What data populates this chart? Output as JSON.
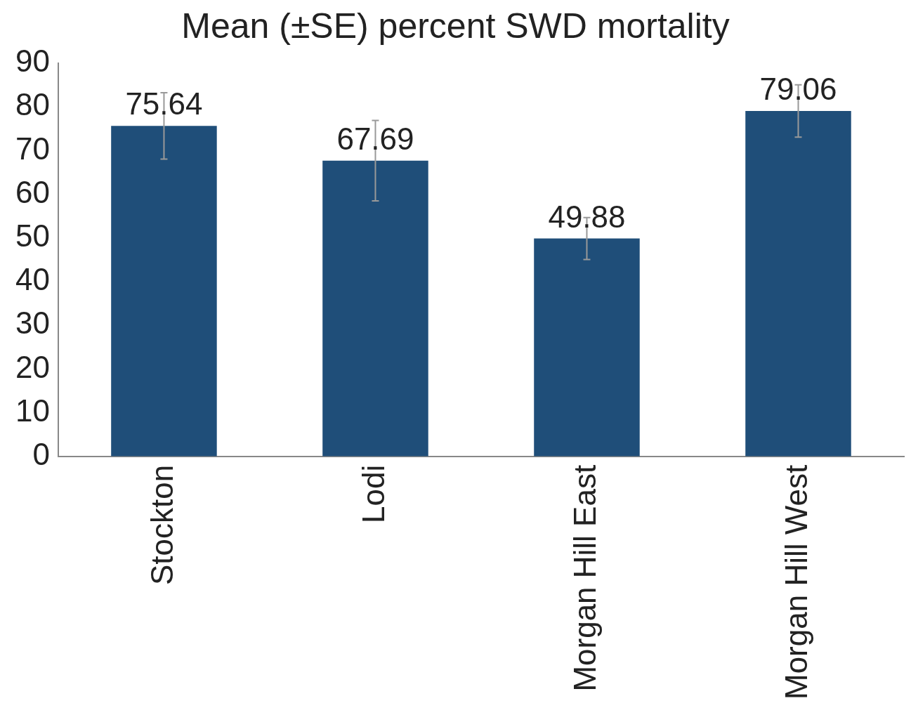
{
  "chart_data": {
    "type": "bar",
    "title": "Mean (±SE) percent SWD mortality",
    "categories": [
      "Stockton",
      "Lodi",
      "Morgan Hill East",
      "Morgan Hill West"
    ],
    "values": [
      75.64,
      67.69,
      49.88,
      79.06
    ],
    "errors": [
      7.6,
      9.2,
      4.8,
      6
    ],
    "color": "#1f4e79",
    "ylim": [
      0,
      90
    ],
    "yticks": [
      0,
      10,
      20,
      30,
      40,
      50,
      60,
      70,
      80,
      90
    ],
    "data_labels": true,
    "grid": false,
    "legend": false
  }
}
